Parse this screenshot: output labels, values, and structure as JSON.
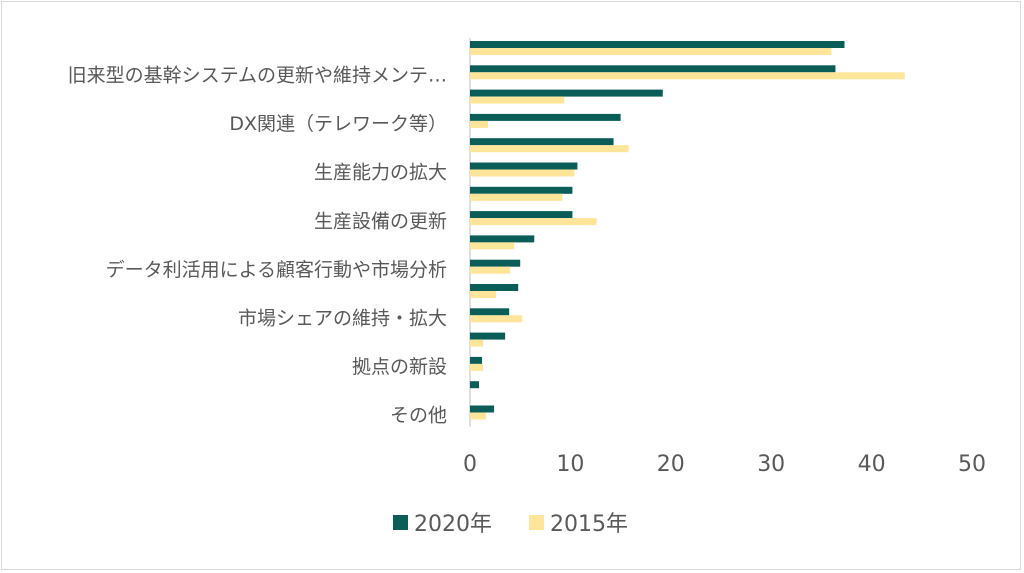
{
  "chart_data": {
    "type": "bar",
    "orientation": "horizontal",
    "title": "",
    "xlabel": "",
    "ylabel": "",
    "xlim": [
      0,
      50
    ],
    "xticks": [
      0,
      10,
      20,
      30,
      40,
      50
    ],
    "grid": false,
    "legend_position": "bottom",
    "categories": [
      "",
      "旧来型の基幹システムの更新や維持メンテ…",
      "",
      "DX関連（テレワーク等）",
      "",
      "生産能力の拡大",
      "",
      "生産設備の更新",
      "",
      "データ利活用による顧客行動や市場分析",
      "",
      "市場シェアの維持・拡大",
      "",
      "拠点の新設",
      "",
      "その他"
    ],
    "series": [
      {
        "name": "2020年",
        "color": "#0b5e58",
        "values": [
          37.3,
          36.4,
          19.2,
          15.0,
          14.3,
          10.7,
          10.2,
          10.2,
          6.4,
          5.0,
          4.8,
          3.9,
          3.5,
          1.2,
          0.9,
          2.4
        ]
      },
      {
        "name": "2015年",
        "color": "#ffe59a",
        "values": [
          36.0,
          43.3,
          9.4,
          1.8,
          15.8,
          10.4,
          9.2,
          12.6,
          4.4,
          4.0,
          2.6,
          5.2,
          1.3,
          1.3,
          0.0,
          1.6
        ]
      }
    ]
  }
}
